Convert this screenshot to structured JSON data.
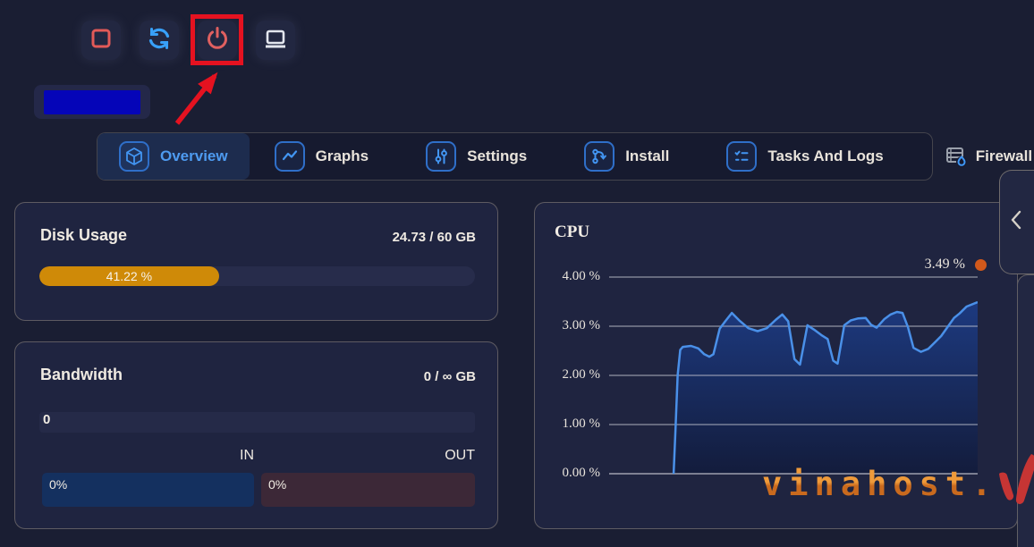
{
  "colors": {
    "accent_blue": "#4295f2",
    "annotation_red": "#e51220",
    "disk_fill_orange": "#cf8a08",
    "in_bar_blue": "#14305f",
    "out_bar_maroon": "#3c2837",
    "chart_line_blue": "#4a90e8",
    "legend_dot_orange": "#d2591b",
    "redacted_blue": "#0505b8"
  },
  "toolbar": {
    "buttons": [
      {
        "name": "stop",
        "icon": "stop-icon"
      },
      {
        "name": "restart",
        "icon": "refresh-icon"
      },
      {
        "name": "power",
        "icon": "power-icon",
        "annotated": true
      },
      {
        "name": "console",
        "icon": "monitor-icon"
      }
    ]
  },
  "tabs": [
    {
      "label": "Overview",
      "active": true
    },
    {
      "label": "Graphs",
      "active": false
    },
    {
      "label": "Settings",
      "active": false
    },
    {
      "label": "Install",
      "active": false
    },
    {
      "label": "Tasks And Logs",
      "active": false
    },
    {
      "label": "Firewall",
      "active": false
    }
  ],
  "disk": {
    "title": "Disk Usage",
    "value": "24.73 / 60 GB",
    "percent": 41.22,
    "percent_label": "41.22 %"
  },
  "bandwidth": {
    "title": "Bandwidth",
    "value": "0 / ∞ GB",
    "total_label": "0",
    "in_label": "IN",
    "out_label": "OUT",
    "in_percent_label": "0%",
    "out_percent_label": "0%"
  },
  "chart_data": {
    "type": "area",
    "title": "CPU",
    "legend_value": "3.49 %",
    "ylim": [
      0,
      4
    ],
    "yticks": [
      {
        "label": "4.00 %",
        "value": 4
      },
      {
        "label": "3.00 %",
        "value": 3
      },
      {
        "label": "2.00 %",
        "value": 2
      },
      {
        "label": "1.00 %",
        "value": 1
      },
      {
        "label": "0.00 %",
        "value": 0
      }
    ],
    "grid": true,
    "legend_position": "top-right",
    "xlabel": "",
    "ylabel": "",
    "points": [
      [
        0.175,
        0.0
      ],
      [
        0.18,
        0.9
      ],
      [
        0.186,
        2.0
      ],
      [
        0.193,
        2.52
      ],
      [
        0.2,
        2.58
      ],
      [
        0.222,
        2.6
      ],
      [
        0.242,
        2.55
      ],
      [
        0.258,
        2.43
      ],
      [
        0.272,
        2.38
      ],
      [
        0.283,
        2.43
      ],
      [
        0.3,
        2.95
      ],
      [
        0.315,
        3.1
      ],
      [
        0.333,
        3.27
      ],
      [
        0.353,
        3.12
      ],
      [
        0.378,
        2.96
      ],
      [
        0.403,
        2.9
      ],
      [
        0.428,
        2.96
      ],
      [
        0.452,
        3.13
      ],
      [
        0.47,
        3.24
      ],
      [
        0.486,
        3.1
      ],
      [
        0.503,
        2.33
      ],
      [
        0.518,
        2.22
      ],
      [
        0.538,
        3.02
      ],
      [
        0.556,
        2.93
      ],
      [
        0.576,
        2.82
      ],
      [
        0.593,
        2.74
      ],
      [
        0.608,
        2.3
      ],
      [
        0.62,
        2.24
      ],
      [
        0.638,
        3.02
      ],
      [
        0.656,
        3.12
      ],
      [
        0.676,
        3.16
      ],
      [
        0.696,
        3.17
      ],
      [
        0.711,
        3.03
      ],
      [
        0.726,
        2.97
      ],
      [
        0.746,
        3.14
      ],
      [
        0.764,
        3.24
      ],
      [
        0.781,
        3.29
      ],
      [
        0.796,
        3.27
      ],
      [
        0.811,
        2.98
      ],
      [
        0.826,
        2.56
      ],
      [
        0.846,
        2.48
      ],
      [
        0.866,
        2.54
      ],
      [
        0.885,
        2.68
      ],
      [
        0.901,
        2.8
      ],
      [
        0.92,
        3.0
      ],
      [
        0.936,
        3.17
      ],
      [
        0.951,
        3.26
      ],
      [
        0.97,
        3.4
      ],
      [
        1.0,
        3.49
      ]
    ]
  },
  "side_panel": {
    "chevron": "collapse-left"
  },
  "watermark": {
    "text": "vinahost."
  }
}
